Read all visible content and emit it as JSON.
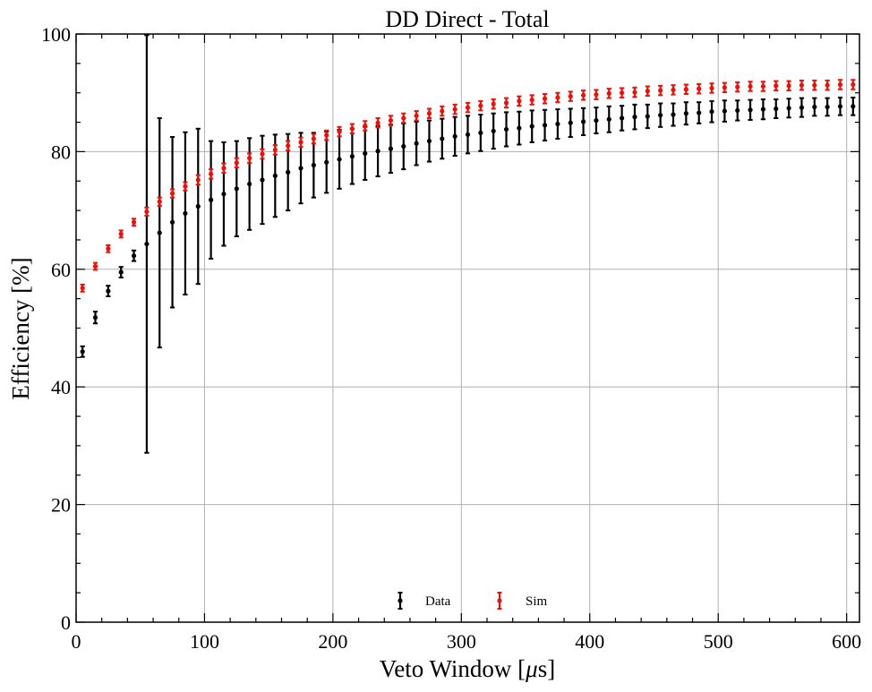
{
  "chart_data": {
    "type": "scatter",
    "title": "DD Direct - Total",
    "xlabel_main": "Veto Window [",
    "xlabel_mu": "μ",
    "xlabel_tail": "s]",
    "ylabel": "Efficiency [%]",
    "xlim": [
      0,
      610
    ],
    "ylim": [
      0,
      100
    ],
    "x_ticks": [
      "0",
      "100",
      "200",
      "300",
      "400",
      "500",
      "600"
    ],
    "y_ticks": [
      "0",
      "20",
      "40",
      "60",
      "80",
      "100"
    ],
    "x_tick_values": [
      0,
      100,
      200,
      300,
      400,
      500,
      600
    ],
    "y_tick_values": [
      0,
      20,
      40,
      60,
      80,
      100
    ],
    "x_minor_step": 20,
    "y_minor_step": 5,
    "grid": true,
    "legend_position": "bottom-center",
    "series": [
      {
        "name": "Data",
        "color": "#000000",
        "x": [
          5,
          15,
          25,
          35,
          45,
          55,
          65,
          75,
          85,
          95,
          105,
          115,
          125,
          135,
          145,
          155,
          165,
          175,
          185,
          195,
          205,
          215,
          225,
          235,
          245,
          255,
          265,
          275,
          285,
          295,
          305,
          315,
          325,
          335,
          345,
          355,
          365,
          375,
          385,
          395,
          405,
          415,
          425,
          435,
          445,
          455,
          465,
          475,
          485,
          495,
          505,
          515,
          525,
          535,
          545,
          555,
          565,
          575,
          585,
          595,
          605
        ],
        "y": [
          46.0,
          51.8,
          56.3,
          59.5,
          62.3,
          64.3,
          66.2,
          68.0,
          69.5,
          70.7,
          71.8,
          72.8,
          73.7,
          74.5,
          75.2,
          75.9,
          76.5,
          77.2,
          77.7,
          78.2,
          78.7,
          79.2,
          79.7,
          80.1,
          80.5,
          80.9,
          81.4,
          81.8,
          82.2,
          82.6,
          82.9,
          83.2,
          83.5,
          83.8,
          84.0,
          84.3,
          84.5,
          84.7,
          84.9,
          85.1,
          85.3,
          85.5,
          85.7,
          85.9,
          86.0,
          86.2,
          86.3,
          86.5,
          86.6,
          86.8,
          86.9,
          87.0,
          87.1,
          87.2,
          87.3,
          87.4,
          87.5,
          87.6,
          87.6,
          87.7,
          87.7
        ],
        "err": [
          0.9,
          1.0,
          0.9,
          0.9,
          0.9,
          35.5,
          19.5,
          14.5,
          13.8,
          13.2,
          10.0,
          8.8,
          8.1,
          7.8,
          7.5,
          7.0,
          6.5,
          6.0,
          5.5,
          5.2,
          5.0,
          4.7,
          4.5,
          4.3,
          4.1,
          3.9,
          3.7,
          3.5,
          3.4,
          3.3,
          3.2,
          3.1,
          3.0,
          2.9,
          2.8,
          2.7,
          2.6,
          2.5,
          2.4,
          2.3,
          2.2,
          2.2,
          2.1,
          2.1,
          2.0,
          2.0,
          1.9,
          1.9,
          1.8,
          1.8,
          1.8,
          1.7,
          1.7,
          1.7,
          1.6,
          1.6,
          1.6,
          1.5,
          1.5,
          1.5,
          1.5
        ]
      },
      {
        "name": "Sim",
        "color": "#e8120c",
        "x": [
          5,
          15,
          25,
          35,
          45,
          55,
          65,
          75,
          85,
          95,
          105,
          115,
          125,
          135,
          145,
          155,
          165,
          175,
          185,
          195,
          205,
          215,
          225,
          235,
          245,
          255,
          265,
          275,
          285,
          295,
          305,
          315,
          325,
          335,
          345,
          355,
          365,
          375,
          385,
          395,
          405,
          415,
          425,
          435,
          445,
          455,
          465,
          475,
          485,
          495,
          505,
          515,
          525,
          535,
          545,
          555,
          565,
          575,
          585,
          595,
          605
        ],
        "y": [
          56.8,
          60.5,
          63.5,
          66.0,
          68.0,
          69.8,
          71.5,
          72.9,
          74.1,
          75.2,
          76.2,
          77.2,
          78.1,
          78.9,
          79.6,
          80.3,
          81.0,
          81.6,
          82.2,
          82.8,
          83.4,
          83.9,
          84.4,
          84.9,
          85.3,
          85.7,
          86.1,
          86.5,
          86.9,
          87.2,
          87.5,
          87.8,
          88.1,
          88.3,
          88.6,
          88.8,
          89.0,
          89.2,
          89.4,
          89.6,
          89.7,
          89.9,
          90.0,
          90.1,
          90.3,
          90.4,
          90.5,
          90.6,
          90.7,
          90.8,
          90.9,
          91.0,
          91.1,
          91.1,
          91.2,
          91.2,
          91.3,
          91.3,
          91.3,
          91.4,
          91.4
        ],
        "err": [
          0.6,
          0.6,
          0.6,
          0.6,
          0.6,
          0.7,
          0.7,
          0.7,
          0.7,
          0.8,
          0.8,
          0.8,
          0.8,
          0.8,
          0.8,
          0.8,
          0.8,
          0.8,
          0.8,
          0.8,
          0.8,
          0.8,
          0.8,
          0.8,
          0.8,
          0.8,
          0.8,
          0.8,
          0.8,
          0.8,
          0.8,
          0.8,
          0.8,
          0.8,
          0.8,
          0.8,
          0.8,
          0.8,
          0.8,
          0.8,
          0.8,
          0.8,
          0.8,
          0.8,
          0.8,
          0.8,
          0.8,
          0.8,
          0.8,
          0.8,
          0.8,
          0.8,
          0.8,
          0.8,
          0.8,
          0.8,
          0.8,
          0.8,
          0.8,
          0.8,
          0.8
        ]
      }
    ]
  }
}
